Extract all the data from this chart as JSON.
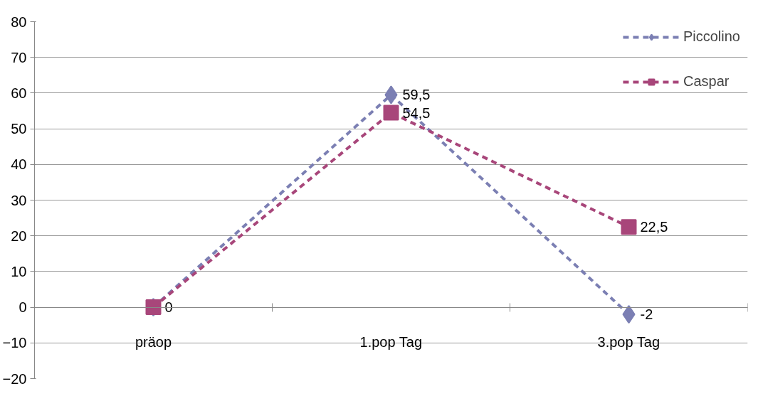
{
  "chart_data": {
    "type": "line",
    "categories": [
      "präop",
      "1.pop Tag",
      "3.pop Tag"
    ],
    "series": [
      {
        "name": "Piccolino",
        "color": "#7b7fb3",
        "marker": "diamond",
        "values": [
          0,
          59.5,
          -2
        ],
        "value_labels": [
          null,
          "59,5",
          "-2"
        ]
      },
      {
        "name": "Caspar",
        "color": "#a8467a",
        "marker": "square",
        "values": [
          0,
          54.5,
          22.5
        ],
        "value_labels": [
          "0",
          "54,5",
          "22,5"
        ]
      }
    ],
    "ylim": [
      -20,
      80
    ],
    "yticks": [
      -20,
      -10,
      0,
      10,
      20,
      30,
      40,
      50,
      60,
      70,
      80
    ],
    "grid": "y",
    "legend": "top right",
    "line_style": "dashed"
  }
}
